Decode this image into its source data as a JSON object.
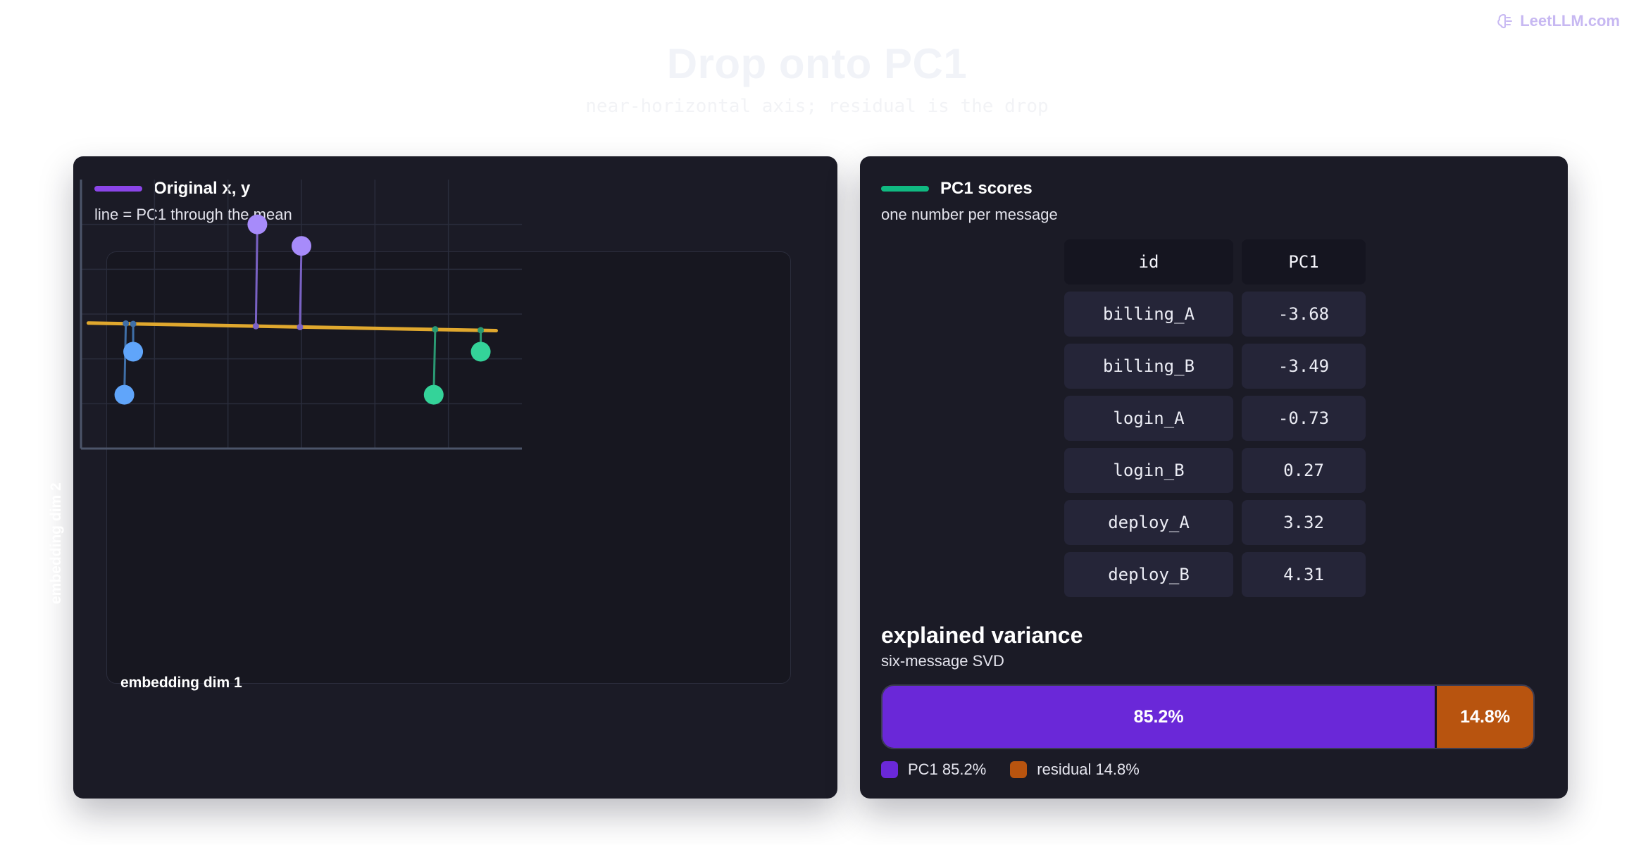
{
  "brand": {
    "label": "LeetLLM.com",
    "icon": "brain-icon",
    "color": "#c7b8f2"
  },
  "hero": {
    "title": "Drop onto PC1",
    "subtitle": "near-horizontal axis; residual is the drop"
  },
  "left_panel": {
    "legend_label": "Original x, y",
    "legend_color": "#8b45e8",
    "subtitle": "line = PC1 through the mean"
  },
  "right_panel": {
    "legend_label": "PC1 scores",
    "legend_color": "#10b981",
    "subtitle": "one number per message",
    "table": {
      "headers": [
        "id",
        "PC1"
      ],
      "rows": [
        [
          "billing_A",
          "-3.68"
        ],
        [
          "billing_B",
          "-3.49"
        ],
        [
          "login_A",
          "-0.73"
        ],
        [
          "login_B",
          "0.27"
        ],
        [
          "deploy_A",
          "3.32"
        ],
        [
          "deploy_B",
          "4.31"
        ]
      ]
    },
    "explained_variance": {
      "title": "explained variance",
      "subtitle": "six-message SVD",
      "pc1_value": 85.2,
      "residual_value": 14.8,
      "pc1_label": "85.2%",
      "residual_label": "14.8%",
      "legend_pc1": "PC1 85.2%",
      "legend_residual": "residual 14.8%",
      "pc1_color": "#6a28d8",
      "residual_color": "#b8540f"
    }
  },
  "chart_data": {
    "type": "scatter",
    "xlabel": "embedding dim 1",
    "ylabel": "embedding dim 2",
    "xlim": [
      0,
      6
    ],
    "ylim": [
      0,
      6
    ],
    "grid": true,
    "pc1_line": {
      "x": [
        0.1,
        5.65
      ],
      "y": [
        2.8,
        2.63
      ],
      "color": "#e0a82e"
    },
    "points": [
      {
        "label": "billing_A",
        "x": 0.59,
        "y": 1.2,
        "proj_x": 0.61,
        "proj_y": 2.79,
        "color": "#60a5fa",
        "stem_color": "#3f6fa8"
      },
      {
        "label": "billing_B",
        "x": 0.71,
        "y": 2.16,
        "proj_x": 0.71,
        "proj_y": 2.78,
        "color": "#60a5fa",
        "stem_color": "#3f6fa8"
      },
      {
        "label": "login_A",
        "x": 2.4,
        "y": 5.0,
        "proj_x": 2.38,
        "proj_y": 2.73,
        "color": "#a78bfa",
        "stem_color": "#7a62c4"
      },
      {
        "label": "login_B",
        "x": 3.0,
        "y": 4.52,
        "proj_x": 2.98,
        "proj_y": 2.71,
        "color": "#a78bfa",
        "stem_color": "#7a62c4"
      },
      {
        "label": "deploy_A",
        "x": 4.8,
        "y": 1.2,
        "proj_x": 4.82,
        "proj_y": 2.66,
        "color": "#34d399",
        "stem_color": "#2a9a73"
      },
      {
        "label": "deploy_B",
        "x": 5.44,
        "y": 2.16,
        "proj_x": 5.44,
        "proj_y": 2.64,
        "color": "#34d399",
        "stem_color": "#2a9a73"
      }
    ]
  }
}
